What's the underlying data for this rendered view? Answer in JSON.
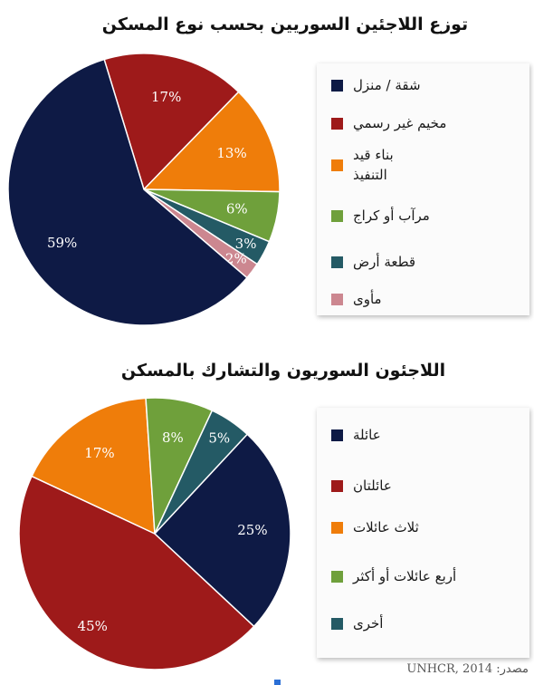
{
  "source_text": "UNHCR, 2014 :مصدر",
  "chart_data": [
    {
      "type": "pie",
      "title": "توزع اللاجئين السوريين بحسب نوع المسكن",
      "legend_position": "right",
      "categories": [
        "شقة / منزل",
        "مخيم غير رسمي",
        "بناء قيد\nالتنفيذ",
        "مرآب أو كراج",
        "قطعة أرض",
        "مأوى"
      ],
      "values": [
        59,
        17,
        13,
        6,
        3,
        2
      ],
      "data_labels": [
        "59%",
        "17%",
        "13%",
        "6%",
        "3%",
        "2%"
      ],
      "colors": [
        "#0e1a45",
        "#9e1a1a",
        "#ef7d0a",
        "#6fa03b",
        "#245a65",
        "#cc8790"
      ]
    },
    {
      "type": "pie",
      "title": "اللاجئون السوريون والتشارك بالمسكن",
      "legend_position": "right",
      "categories": [
        "عائلة",
        "عائلتان",
        "ثلاث عائلات",
        "أربع عائلات أو أكثر",
        "أخرى"
      ],
      "values": [
        25,
        45,
        17,
        8,
        5
      ],
      "data_labels": [
        "25%",
        "45%",
        "17%",
        "8%",
        "5%"
      ],
      "colors": [
        "#0e1a45",
        "#9e1a1a",
        "#ef7d0a",
        "#6fa03b",
        "#245a65"
      ]
    }
  ]
}
